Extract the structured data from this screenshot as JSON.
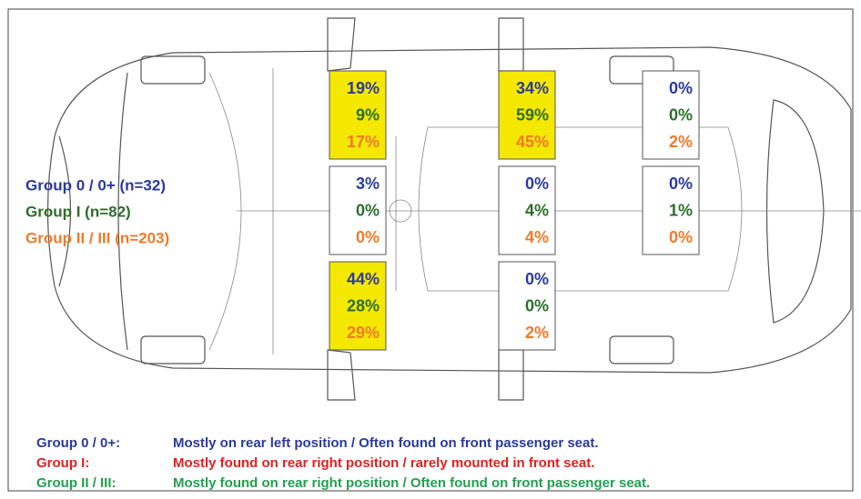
{
  "groups": [
    {
      "label": "Group 0 / 0+ (n=32)",
      "color": "#2a3a9c"
    },
    {
      "label": "Group I (n=82)",
      "color": "#2b6e2b"
    },
    {
      "label": "Group II / III (n=203)",
      "color": "#f07a2a"
    }
  ],
  "seats": [
    {
      "values": [
        "19%",
        "9%",
        "17%"
      ],
      "highlight": true
    },
    {
      "values": [
        "34%",
        "59%",
        "45%"
      ],
      "highlight": true
    },
    {
      "values": [
        "0%",
        "0%",
        "2%"
      ],
      "highlight": false
    },
    {
      "values": [
        "3%",
        "0%",
        "0%"
      ],
      "highlight": false
    },
    {
      "values": [
        "0%",
        "4%",
        "4%"
      ],
      "highlight": false
    },
    {
      "values": [
        "0%",
        "1%",
        "0%"
      ],
      "highlight": false
    },
    {
      "values": [
        "44%",
        "28%",
        "29%"
      ],
      "highlight": true
    },
    {
      "values": [
        "0%",
        "0%",
        "2%"
      ],
      "highlight": false
    }
  ],
  "notes": [
    {
      "group": "Group 0 / 0+:",
      "text": "Mostly on rear left position / Often found on front passenger seat.",
      "color": "#2a3a9c"
    },
    {
      "group": "Group I:",
      "text": "Mostly found on rear right position / rarely mounted in front seat.",
      "color": "#e02020"
    },
    {
      "group": "Group II / III:",
      "text": "Mostly found on rear right position / Often found on front passenger seat.",
      "color": "#22a050"
    }
  ]
}
